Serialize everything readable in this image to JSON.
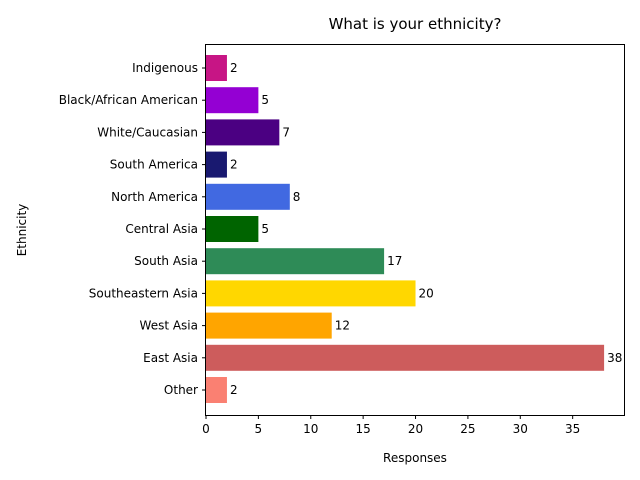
{
  "chart_data": {
    "type": "bar",
    "orientation": "horizontal",
    "title": "What is your ethnicity?",
    "xlabel": "Responses",
    "ylabel": "Ethnicity",
    "xlim": [
      0,
      40
    ],
    "xticks": [
      0,
      5,
      10,
      15,
      20,
      25,
      30,
      35
    ],
    "grid": false,
    "categories": [
      "Other",
      "East Asia",
      "West Asia",
      "Southeastern Asia",
      "South Asia",
      "Central Asia",
      "North America",
      "South America",
      "White/Caucasian",
      "Black/African American",
      "Indigenous"
    ],
    "values": [
      2,
      38,
      12,
      20,
      17,
      5,
      8,
      2,
      7,
      5,
      2
    ],
    "colors": [
      "#fa8072",
      "#cd5c5c",
      "#ffa500",
      "#ffd700",
      "#2e8b57",
      "#006400",
      "#4169e1",
      "#191970",
      "#4b0082",
      "#9400d3",
      "#c71585"
    ]
  }
}
